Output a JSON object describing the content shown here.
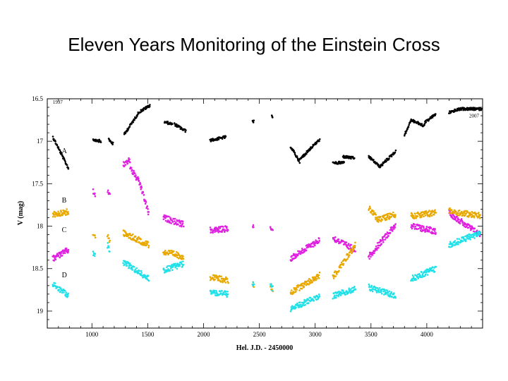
{
  "title": "Eleven Years Monitoring of the Einstein Cross",
  "chart_data": {
    "type": "scatter",
    "xlabel": "Hel. J.D. - 2450000",
    "ylabel": "V (mag)",
    "xlim": [
      600,
      4500
    ],
    "ylim": [
      16.5,
      19.2
    ],
    "y_inverted": true,
    "xticks": [
      1000,
      1500,
      2000,
      2500,
      3000,
      3500,
      4000
    ],
    "xtick_labels": [
      "1000",
      "1500",
      "2000",
      "2500",
      "3000",
      "3500",
      "4000"
    ],
    "yticks": [
      16.5,
      17,
      17.5,
      18,
      18.5,
      19
    ],
    "ytick_labels": [
      "16.5",
      "17",
      "17.5",
      "18",
      "18.5",
      "19"
    ],
    "annotations": [
      {
        "text": "1997",
        "x": 650,
        "y": 16.56
      },
      {
        "text": "2007",
        "x": 4380,
        "y": 16.72
      }
    ],
    "series": [
      {
        "name": "A",
        "color": "#000000",
        "label_x": 730,
        "label_y": 17.14,
        "segments": [
          {
            "x0": 650,
            "x1": 790,
            "y0": 16.95,
            "y1": 17.32
          },
          {
            "x0": 1010,
            "x1": 1080,
            "y0": 16.98,
            "y1": 17.0
          },
          {
            "x0": 1150,
            "x1": 1190,
            "y0": 16.98,
            "y1": 17.03
          },
          {
            "x0": 1290,
            "x1": 1420,
            "y0": 16.92,
            "y1": 16.66
          },
          {
            "x0": 1430,
            "x1": 1520,
            "y0": 16.65,
            "y1": 16.58
          },
          {
            "x0": 1650,
            "x1": 1720,
            "y0": 16.77,
            "y1": 16.8
          },
          {
            "x0": 1740,
            "x1": 1840,
            "y0": 16.8,
            "y1": 16.88
          },
          {
            "x0": 2060,
            "x1": 2200,
            "y0": 16.99,
            "y1": 16.95
          },
          {
            "x0": 2440,
            "x1": 2450,
            "y0": 16.77,
            "y1": 16.77
          },
          {
            "x0": 2610,
            "x1": 2620,
            "y0": 16.71,
            "y1": 16.73
          },
          {
            "x0": 2780,
            "x1": 2860,
            "y0": 17.06,
            "y1": 17.24
          },
          {
            "x0": 2860,
            "x1": 2960,
            "y0": 17.22,
            "y1": 17.08
          },
          {
            "x0": 2960,
            "x1": 3040,
            "y0": 17.08,
            "y1": 16.98
          },
          {
            "x0": 3160,
            "x1": 3260,
            "y0": 17.26,
            "y1": 17.25
          },
          {
            "x0": 3250,
            "x1": 3350,
            "y0": 17.18,
            "y1": 17.2
          },
          {
            "x0": 3480,
            "x1": 3580,
            "y0": 17.18,
            "y1": 17.3
          },
          {
            "x0": 3580,
            "x1": 3720,
            "y0": 17.3,
            "y1": 17.12
          },
          {
            "x0": 3800,
            "x1": 3860,
            "y0": 16.93,
            "y1": 16.75
          },
          {
            "x0": 3860,
            "x1": 3980,
            "y0": 16.75,
            "y1": 16.82
          },
          {
            "x0": 3980,
            "x1": 4080,
            "y0": 16.78,
            "y1": 16.68
          },
          {
            "x0": 4200,
            "x1": 4300,
            "y0": 16.66,
            "y1": 16.62
          },
          {
            "x0": 4300,
            "x1": 4490,
            "y0": 16.62,
            "y1": 16.62
          }
        ]
      },
      {
        "name": "B",
        "color": "#e020e0",
        "label_x": 730,
        "label_y": 17.72,
        "segments": [
          {
            "x0": 650,
            "x1": 790,
            "y0": 18.38,
            "y1": 18.28
          },
          {
            "x0": 1010,
            "x1": 1030,
            "y0": 17.6,
            "y1": 17.62
          },
          {
            "x0": 1140,
            "x1": 1160,
            "y0": 17.58,
            "y1": 17.64
          },
          {
            "x0": 1280,
            "x1": 1340,
            "y0": 17.28,
            "y1": 17.22
          },
          {
            "x0": 1340,
            "x1": 1430,
            "y0": 17.3,
            "y1": 17.5
          },
          {
            "x0": 1430,
            "x1": 1510,
            "y0": 17.5,
            "y1": 17.85
          },
          {
            "x0": 1640,
            "x1": 1820,
            "y0": 17.9,
            "y1": 17.98
          },
          {
            "x0": 2060,
            "x1": 2220,
            "y0": 18.05,
            "y1": 18.03
          },
          {
            "x0": 2440,
            "x1": 2450,
            "y0": 18.01,
            "y1": 18.01
          },
          {
            "x0": 2600,
            "x1": 2620,
            "y0": 18.02,
            "y1": 18.06
          },
          {
            "x0": 2780,
            "x1": 3040,
            "y0": 18.38,
            "y1": 18.16
          },
          {
            "x0": 3160,
            "x1": 3360,
            "y0": 18.14,
            "y1": 18.28
          },
          {
            "x0": 3480,
            "x1": 3720,
            "y0": 18.36,
            "y1": 17.98
          },
          {
            "x0": 3860,
            "x1": 4080,
            "y0": 18.0,
            "y1": 18.06
          },
          {
            "x0": 4200,
            "x1": 4320,
            "y0": 17.84,
            "y1": 17.96
          },
          {
            "x0": 4320,
            "x1": 4480,
            "y0": 17.96,
            "y1": 18.1
          }
        ]
      },
      {
        "name": "C",
        "color": "#e8a800",
        "label_x": 730,
        "label_y": 18.07,
        "segments": [
          {
            "x0": 650,
            "x1": 790,
            "y0": 17.86,
            "y1": 17.83
          },
          {
            "x0": 1010,
            "x1": 1030,
            "y0": 18.08,
            "y1": 18.12
          },
          {
            "x0": 1140,
            "x1": 1160,
            "y0": 18.12,
            "y1": 18.18
          },
          {
            "x0": 1280,
            "x1": 1510,
            "y0": 18.08,
            "y1": 18.22
          },
          {
            "x0": 1640,
            "x1": 1820,
            "y0": 18.3,
            "y1": 18.36
          },
          {
            "x0": 2060,
            "x1": 2220,
            "y0": 18.6,
            "y1": 18.64
          },
          {
            "x0": 2440,
            "x1": 2450,
            "y0": 18.68,
            "y1": 18.7
          },
          {
            "x0": 2600,
            "x1": 2620,
            "y0": 18.7,
            "y1": 18.74
          },
          {
            "x0": 2780,
            "x1": 3040,
            "y0": 18.78,
            "y1": 18.58
          },
          {
            "x0": 3160,
            "x1": 3360,
            "y0": 18.6,
            "y1": 18.22
          },
          {
            "x0": 3480,
            "x1": 3560,
            "y0": 17.78,
            "y1": 17.92
          },
          {
            "x0": 3560,
            "x1": 3720,
            "y0": 17.92,
            "y1": 17.86
          },
          {
            "x0": 3860,
            "x1": 4080,
            "y0": 17.88,
            "y1": 17.84
          },
          {
            "x0": 4200,
            "x1": 4480,
            "y0": 17.82,
            "y1": 17.88
          }
        ]
      },
      {
        "name": "D",
        "color": "#20e0e8",
        "label_x": 730,
        "label_y": 18.6,
        "segments": [
          {
            "x0": 650,
            "x1": 790,
            "y0": 18.68,
            "y1": 18.82
          },
          {
            "x0": 1010,
            "x1": 1030,
            "y0": 18.32,
            "y1": 18.36
          },
          {
            "x0": 1140,
            "x1": 1160,
            "y0": 18.22,
            "y1": 18.28
          },
          {
            "x0": 1280,
            "x1": 1510,
            "y0": 18.42,
            "y1": 18.62
          },
          {
            "x0": 1640,
            "x1": 1820,
            "y0": 18.52,
            "y1": 18.44
          },
          {
            "x0": 2060,
            "x1": 2220,
            "y0": 18.78,
            "y1": 18.8
          },
          {
            "x0": 2440,
            "x1": 2450,
            "y0": 18.66,
            "y1": 18.68
          },
          {
            "x0": 2600,
            "x1": 2620,
            "y0": 18.7,
            "y1": 18.74
          },
          {
            "x0": 2780,
            "x1": 3040,
            "y0": 18.98,
            "y1": 18.82
          },
          {
            "x0": 3160,
            "x1": 3360,
            "y0": 18.82,
            "y1": 18.74
          },
          {
            "x0": 3480,
            "x1": 3720,
            "y0": 18.72,
            "y1": 18.82
          },
          {
            "x0": 3860,
            "x1": 4080,
            "y0": 18.62,
            "y1": 18.5
          },
          {
            "x0": 4200,
            "x1": 4480,
            "y0": 18.22,
            "y1": 18.08
          }
        ]
      }
    ]
  }
}
